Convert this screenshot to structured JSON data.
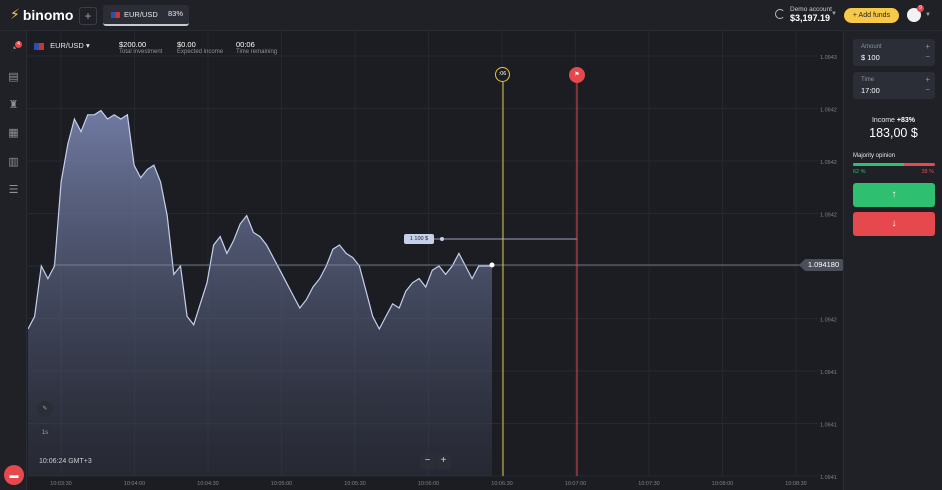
{
  "header": {
    "logo_text": "binomo",
    "new_tab_symbol": "+",
    "asset_tab": {
      "name": "EUR/USD",
      "payout": "83%"
    },
    "account": {
      "label": "Demo account",
      "balance": "$3,197.19"
    },
    "add_funds_label": "+ Add funds",
    "avatar_badge": "9"
  },
  "sidebar": {
    "badge": "4",
    "items": [
      "trades-icon",
      "chart-icon",
      "trophy-icon",
      "gift-icon",
      "calendar-icon",
      "settings-icon"
    ],
    "chat_icon": "chat-icon"
  },
  "chart_info": {
    "asset": "EUR/USD",
    "total_investment": {
      "value": "$200.00",
      "label": "Total investment"
    },
    "expected_income": {
      "value": "$0.00",
      "label": "Expected income"
    },
    "time_remaining": {
      "value": "00:06",
      "label": "Time remaining"
    }
  },
  "chart_controls": {
    "timeframe": "1s",
    "clock": "10:06:24 GMT+3",
    "zoom_out": "−",
    "zoom_in": "+",
    "current_price": "1.094180",
    "trade_tag": "1   100 $",
    "timer": ":06"
  },
  "chart_data": {
    "type": "area",
    "x_ticks": [
      "10:03:30",
      "10:04:00",
      "10:04:30",
      "10:05:00",
      "10:05:30",
      "10:06:00",
      "10:06:30",
      "10:07:00",
      "10:07:30",
      "10:08:00",
      "10:08:30"
    ],
    "y_ticks": [
      "1.0943",
      "1.0942",
      "1.0942",
      "1.0942",
      "1.0942",
      "1.0942",
      "1.0941",
      "1.0941",
      "1.0941"
    ],
    "current_price": 1.09418,
    "series": [
      {
        "values": [
          0.35,
          0.38,
          0.5,
          0.47,
          0.5,
          0.7,
          0.79,
          0.85,
          0.82,
          0.86,
          0.86,
          0.87,
          0.85,
          0.86,
          0.85,
          0.86,
          0.74,
          0.71,
          0.73,
          0.74,
          0.7,
          0.62,
          0.48,
          0.5,
          0.38,
          0.36,
          0.41,
          0.46,
          0.55,
          0.57,
          0.53,
          0.56,
          0.6,
          0.62,
          0.58,
          0.57,
          0.55,
          0.52,
          0.49,
          0.46,
          0.43,
          0.4,
          0.42,
          0.45,
          0.47,
          0.5,
          0.54,
          0.55,
          0.53,
          0.52,
          0.5,
          0.44,
          0.38,
          0.35,
          0.38,
          0.41,
          0.4,
          0.44,
          0.46,
          0.47,
          0.45,
          0.49,
          0.5,
          0.48,
          0.5,
          0.53,
          0.5,
          0.47,
          0.5,
          0.5,
          0.5
        ]
      }
    ]
  },
  "trade_panel": {
    "amount": {
      "label": "Amount",
      "value": "$ 100"
    },
    "time": {
      "label": "Time",
      "value": "17:00"
    },
    "income_label": "Income",
    "income_pct": "+83%",
    "income_value": "183,00 $",
    "majority_label": "Majority opinion",
    "majority_up": "62 %",
    "majority_down": "38 %",
    "majority_up_fraction": 0.62,
    "up_symbol": "↑",
    "down_symbol": "↓"
  }
}
